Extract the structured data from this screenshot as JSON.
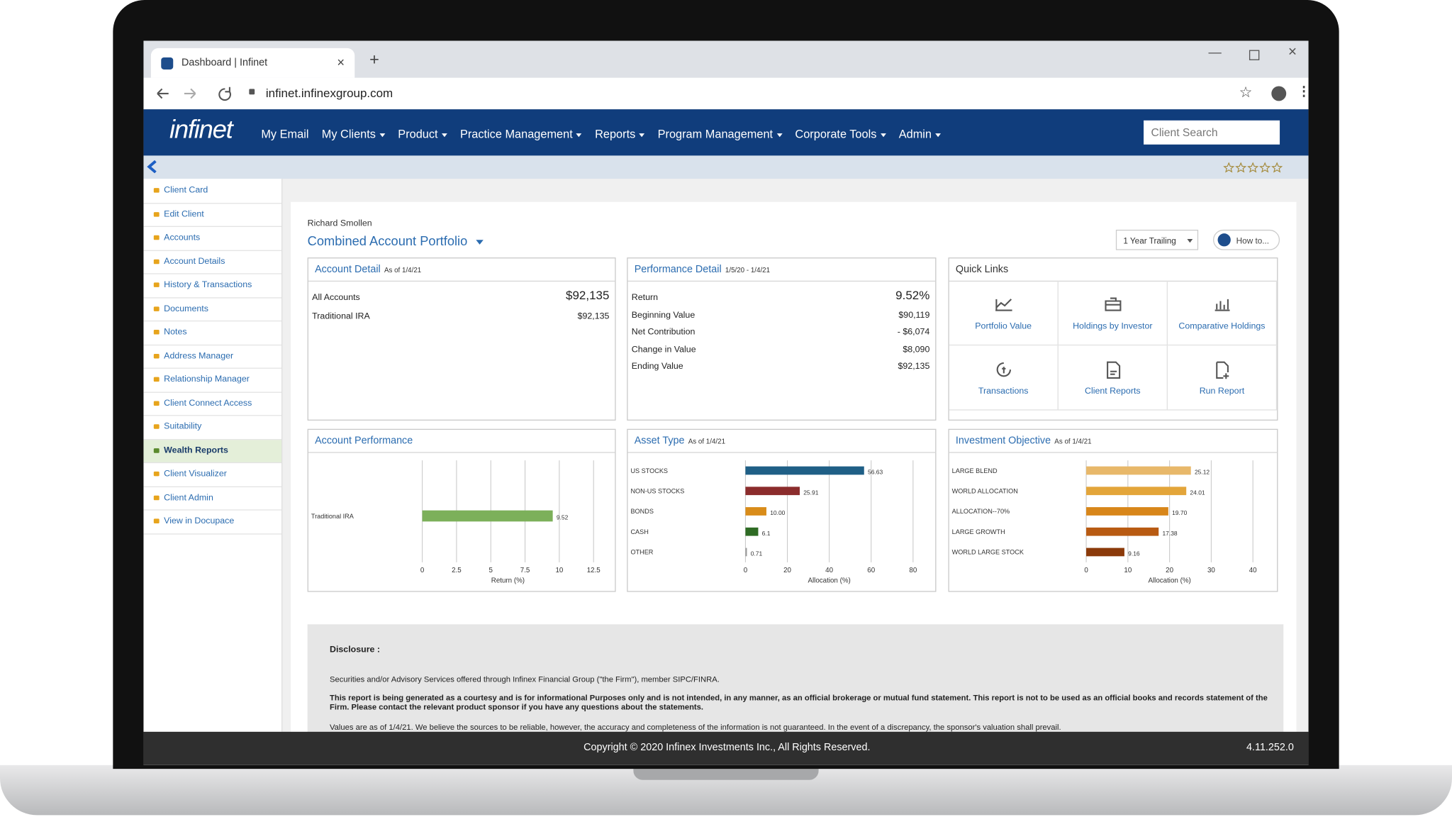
{
  "browser": {
    "tab_title": "Dashboard | Infinet",
    "url": "infinet.infinexgroup.com"
  },
  "nav": {
    "logo": "infinet",
    "items": [
      "My Email",
      "My Clients",
      "Product",
      "Practice Management",
      "Reports",
      "Program Management",
      "Corporate Tools",
      "Admin"
    ],
    "search": "Client Search"
  },
  "sidebar": [
    "Client Card",
    "Edit Client",
    "Accounts",
    "Account Details",
    "History & Transactions",
    "Documents",
    "Notes",
    "Address Manager",
    "Relationship Manager",
    "Client Connect Access",
    "Suitability",
    "Wealth Reports",
    "Client Visualizer",
    "Client Admin",
    "View in Docupace"
  ],
  "header": {
    "client_name": "Richard Smollen",
    "portfolio": "Combined Account Portfolio",
    "period": "1 Year Trailing",
    "how_to": "How to..."
  },
  "account_detail": {
    "title": "Account Detail",
    "as_of": "As of 1/4/21",
    "rows": [
      {
        "label": "All Accounts",
        "value": "$92,135"
      },
      {
        "label": "Traditional IRA",
        "value": "$92,135"
      }
    ]
  },
  "performance_detail": {
    "title": "Performance Detail",
    "period": "1/5/20 - 1/4/21",
    "rows": [
      {
        "label": "Return",
        "value": "9.52%"
      },
      {
        "label": "Beginning Value",
        "value": "$90,119"
      },
      {
        "label": "Net Contribution",
        "value": "- $6,074"
      },
      {
        "label": "Change in Value",
        "value": "$8,090"
      },
      {
        "label": "Ending Value",
        "value": "$92,135"
      }
    ]
  },
  "quick_links": {
    "title": "Quick Links",
    "items": [
      "Portfolio Value",
      "Holdings by Investor",
      "Comparative Holdings",
      "Transactions",
      "Client Reports",
      "Run Report"
    ]
  },
  "chart_data": [
    {
      "type": "barh",
      "title": "Account Performance",
      "categories": [
        "Traditional IRA"
      ],
      "values": [
        9.52
      ],
      "colors": [
        "#7cb05a"
      ],
      "xlim": [
        0,
        12.5
      ],
      "xticks": [
        0,
        2.5,
        5,
        7.5,
        10,
        12.5
      ],
      "xlabel": "Return (%)",
      "grid": true
    },
    {
      "type": "barh",
      "title": "Asset Type",
      "subtitle": "As of 1/4/21",
      "categories": [
        "US STOCKS",
        "NON-US STOCKS",
        "BONDS",
        "CASH",
        "OTHER"
      ],
      "values": [
        56.63,
        25.91,
        10,
        6.1,
        0.71
      ],
      "value_labels": [
        "56.63",
        "25.91",
        "10.00",
        "6.1",
        "0.71"
      ],
      "colors": [
        "#1f5f86",
        "#8b2c2c",
        "#d98c1a",
        "#2e6b24",
        "#9a9a9a"
      ],
      "xlim": [
        0,
        80
      ],
      "xticks": [
        0,
        20,
        40,
        60,
        80
      ],
      "xlabel": "Allocation (%)",
      "grid": true
    },
    {
      "type": "barh",
      "title": "Investment Objective",
      "subtitle": "As of 1/4/21",
      "categories": [
        "LARGE BLEND",
        "WORLD ALLOCATION",
        "ALLOCATION--70%",
        "LARGE GROWTH",
        "WORLD LARGE STOCK"
      ],
      "values": [
        25.12,
        24.01,
        19.7,
        17.38,
        9.16
      ],
      "value_labels": [
        "25.12",
        "24.01",
        "19.70",
        "17.38",
        "9.16"
      ],
      "colors": [
        "#e8b86a",
        "#e3a53a",
        "#d8861a",
        "#b85a12",
        "#8b3a0a"
      ],
      "xlim": [
        0,
        40
      ],
      "xticks": [
        0,
        10,
        20,
        30,
        40
      ],
      "xlabel": "Allocation (%)",
      "grid": true
    }
  ],
  "disclosure": {
    "title": "Disclosure :",
    "paragraphs": [
      "Securities and/or Advisory Services offered through Infinex Financial Group (\"the Firm\"), member SIPC/FINRA.",
      "This report is being generated as a courtesy and is for informational Purposes only and is not intended, in any manner, as an official brokerage or mutual fund statement. This report is not to be used as an official books and records statement of the Firm. Please contact the relevant product sponsor if you have any questions about the statements.",
      "Values are as of 1/4/21. We believe the sources to be reliable, however, the accuracy and completeness of the information is not guaranteed. In the event of a discrepancy, the sponsor's valuation shall prevail."
    ]
  },
  "footer": {
    "copyright": "Copyright © 2020 Infinex Investments Inc., All Rights Reserved.",
    "version": "4.11.252.0"
  }
}
